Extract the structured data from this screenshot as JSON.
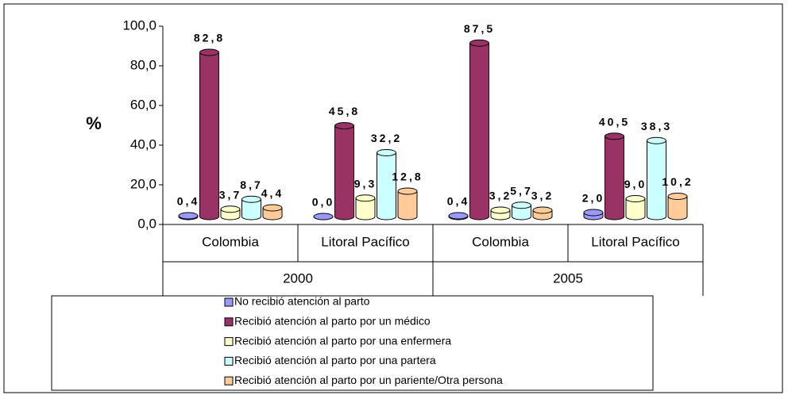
{
  "chart_data": {
    "type": "bar3d",
    "ylabel": "%",
    "categories": [
      "Colombia",
      "Litoral Pacífico",
      "Colombia",
      "Litoral Pacífico"
    ],
    "group_labels": [
      "2000",
      "2005"
    ],
    "ylim": [
      0,
      100
    ],
    "yticks": [
      {
        "value": 0,
        "label": "0,0"
      },
      {
        "value": 20,
        "label": "20,0"
      },
      {
        "value": 40,
        "label": "40,0"
      },
      {
        "value": 60,
        "label": "60,0"
      },
      {
        "value": 80,
        "label": "80,0"
      },
      {
        "value": 100,
        "label": "100,0"
      }
    ],
    "series": [
      {
        "name": "No recibió atención al parto",
        "color": "#9999ff",
        "values": [
          0.4,
          0.0,
          0.4,
          2.0
        ],
        "value_labels": [
          "0,4",
          "0,0",
          "0,4",
          "2,0"
        ]
      },
      {
        "name": "Recibió atención al parto por un médico",
        "color": "#993366",
        "values": [
          82.8,
          45.8,
          87.5,
          40.5
        ],
        "value_labels": [
          "82,8",
          "45,8",
          "87,5",
          "40,5"
        ]
      },
      {
        "name": "Recibió atención al parto por una enfermera",
        "color": "#ffffcc",
        "values": [
          3.7,
          9.3,
          3.2,
          9.0
        ],
        "value_labels": [
          "3,7",
          "9,3",
          "3,2",
          "9,0"
        ]
      },
      {
        "name": "Recibió atención al parto por una partera",
        "color": "#ccffff",
        "values": [
          8.7,
          32.2,
          5.7,
          38.3
        ],
        "value_labels": [
          "8,7",
          "32,2",
          "5,7",
          "38,3"
        ]
      },
      {
        "name": "Recibió atención al parto por un pariente/Otra persona",
        "color": "#ffcc99",
        "values": [
          4.4,
          12.8,
          3.2,
          10.2
        ],
        "value_labels": [
          "4,4",
          "12,8",
          "3,2",
          "10,2"
        ]
      }
    ]
  }
}
